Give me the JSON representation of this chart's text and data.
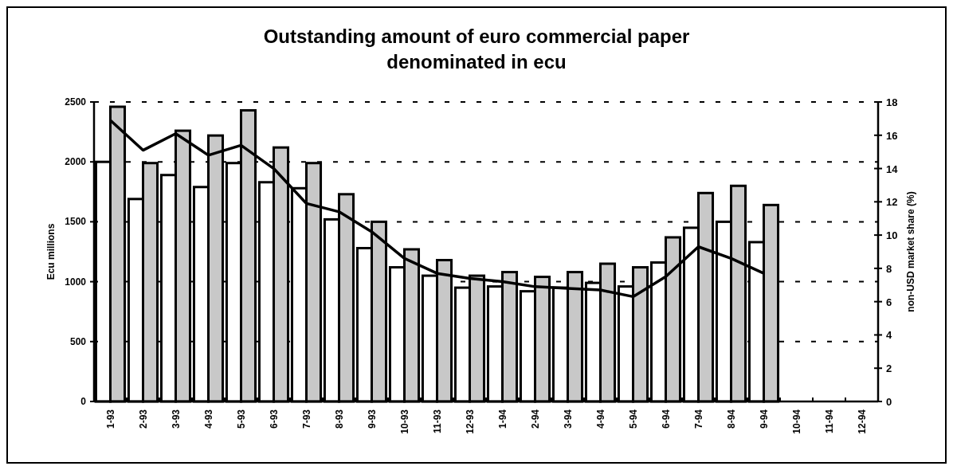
{
  "chart_data": {
    "type": "bar",
    "title": "Outstanding amount of euro commercial paper denominated in ecu",
    "ylabel": "Ecu millions",
    "y2label": "non-USD market share (%)",
    "categories": [
      "1-93",
      "2-93",
      "3-93",
      "4-93",
      "5-93",
      "6-93",
      "7-93",
      "8-93",
      "9-93",
      "10-93",
      "11-93",
      "12-93",
      "1-94",
      "2-94",
      "3-94",
      "4-94",
      "5-94",
      "6-94",
      "7-94",
      "8-94",
      "9-94",
      "10-94",
      "11-94",
      "12-94"
    ],
    "series": [
      {
        "color": "#ffffff",
        "values": [
          2000,
          1690,
          1890,
          1790,
          1990,
          1830,
          1780,
          1520,
          1280,
          1120,
          1050,
          950,
          960,
          920,
          950,
          990,
          960,
          1160,
          1450,
          1500,
          1330,
          null,
          null,
          null
        ]
      },
      {
        "color": "#c8c8c8",
        "values": [
          2460,
          1990,
          2260,
          2220,
          2430,
          2120,
          1990,
          1730,
          1500,
          1270,
          1180,
          1050,
          1080,
          1040,
          1080,
          1150,
          1120,
          1370,
          1740,
          1800,
          1640,
          null,
          null,
          null
        ]
      },
      {
        "type": "line",
        "axis": "y2",
        "color": "#000000",
        "values": [
          16.9,
          15.1,
          16.1,
          14.8,
          15.4,
          14.0,
          11.9,
          11.4,
          10.2,
          8.6,
          7.7,
          7.4,
          7.2,
          6.9,
          6.8,
          6.7,
          6.3,
          7.5,
          9.3,
          8.6,
          7.7,
          null,
          null,
          null
        ]
      }
    ],
    "ylim": [
      0,
      2500
    ],
    "yticks": [
      0,
      500,
      1000,
      1500,
      2000,
      2500
    ],
    "y2lim": [
      0,
      18
    ],
    "y2ticks": [
      0,
      2,
      4,
      6,
      8,
      10,
      12,
      14,
      16,
      18
    ],
    "grid": "y",
    "line_style": "solid",
    "marker": "none"
  }
}
